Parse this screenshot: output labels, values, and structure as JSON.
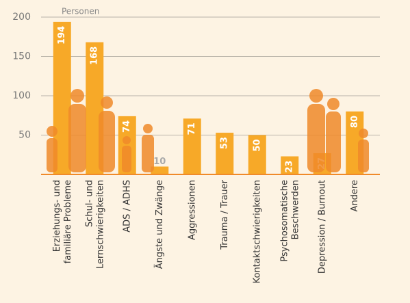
{
  "chart_data": {
    "type": "bar",
    "y_label": "Personen",
    "categories": [
      "Erziehungs- und\nfamiliäre Probleme",
      "Schul- und\nLernschwierigkeiten",
      "ADS / ADHS",
      "Ängste und Zwänge",
      "Aggressionen",
      "Trauma / Trauer",
      "Kontaktschwierigkeiten",
      "Psychosomatische\nBeschwerden",
      "Depression / Burnout",
      "Andere"
    ],
    "values": [
      194,
      168,
      74,
      10,
      71,
      53,
      50,
      23,
      27,
      80
    ],
    "color": "#f7a928",
    "ylim": [
      0,
      200
    ],
    "yticks": [
      50,
      100,
      150,
      200
    ],
    "grid": true
  }
}
